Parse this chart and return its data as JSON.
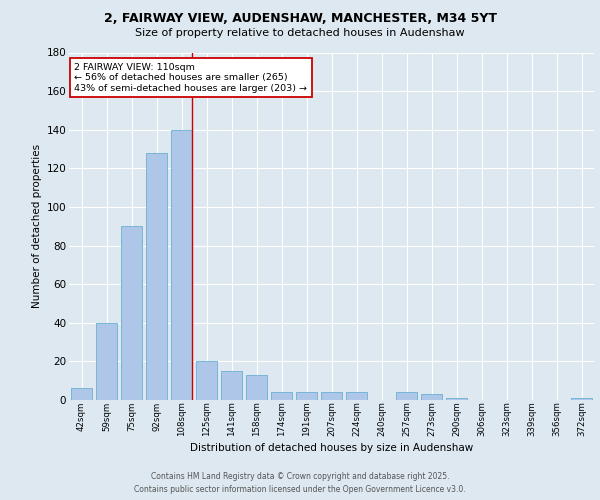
{
  "title_line1": "2, FAIRWAY VIEW, AUDENSHAW, MANCHESTER, M34 5YT",
  "title_line2": "Size of property relative to detached houses in Audenshaw",
  "xlabel": "Distribution of detached houses by size in Audenshaw",
  "ylabel": "Number of detached properties",
  "categories": [
    "42sqm",
    "59sqm",
    "75sqm",
    "92sqm",
    "108sqm",
    "125sqm",
    "141sqm",
    "158sqm",
    "174sqm",
    "191sqm",
    "207sqm",
    "224sqm",
    "240sqm",
    "257sqm",
    "273sqm",
    "290sqm",
    "306sqm",
    "323sqm",
    "339sqm",
    "356sqm",
    "372sqm"
  ],
  "values": [
    6,
    40,
    90,
    128,
    140,
    20,
    15,
    13,
    4,
    4,
    4,
    4,
    0,
    4,
    3,
    1,
    0,
    0,
    0,
    0,
    1
  ],
  "bar_color": "#aec6e8",
  "bar_edge_color": "#6aafd4",
  "background_color": "#dde8f0",
  "grid_color": "#ffffff",
  "vline_index": 4,
  "vline_color": "#cc0000",
  "annotation_text": "2 FAIRWAY VIEW: 110sqm\n← 56% of detached houses are smaller (265)\n43% of semi-detached houses are larger (203) →",
  "annotation_box_facecolor": "#ffffff",
  "annotation_box_edgecolor": "#cc0000",
  "ylim": [
    0,
    180
  ],
  "yticks": [
    0,
    20,
    40,
    60,
    80,
    100,
    120,
    140,
    160,
    180
  ],
  "footer_line1": "Contains HM Land Registry data © Crown copyright and database right 2025.",
  "footer_line2": "Contains public sector information licensed under the Open Government Licence v3.0."
}
